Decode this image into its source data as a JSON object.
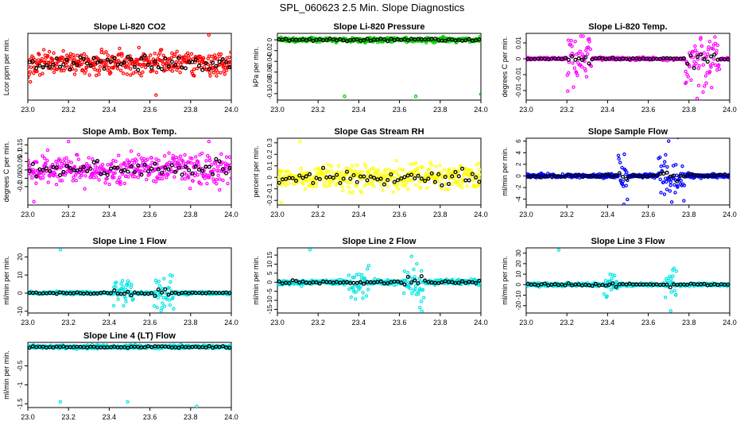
{
  "page": {
    "title": "SPL_060623  2.5 Min. Slope Diagnostics"
  },
  "colors": {
    "background": "#ffffff",
    "axis": "#000000",
    "overlay": "#000000"
  },
  "chart_data": [
    {
      "type": "scatter",
      "title": "Slope Li-820 CO2",
      "ylabel": "Lcor ppm per min.",
      "color": "#ff0000",
      "xlim": [
        23.0,
        24.0
      ],
      "ylim": [
        -1.1,
        0.9
      ],
      "xticks": [
        23.0,
        23.2,
        23.4,
        23.6,
        23.8,
        24.0
      ],
      "yticks": [],
      "grid": false,
      "points_per_series": 400,
      "overlay_points": 60,
      "spread": 0.25,
      "outliers": [
        [
          23.89,
          0.85
        ],
        [
          23.63,
          -0.95
        ]
      ]
    },
    {
      "type": "scatter",
      "title": "Slope Li-820 Pressure",
      "ylabel": "kPa per min.",
      "color": "#00cc00",
      "xlim": [
        23.0,
        24.0
      ],
      "ylim": [
        -0.112,
        0.012
      ],
      "xticks": [
        23.0,
        23.2,
        23.4,
        23.6,
        23.8,
        24.0
      ],
      "yticks": [
        -0.1,
        -0.08,
        -0.06,
        -0.04,
        -0.02,
        0.0
      ],
      "grid": false,
      "points_per_series": 400,
      "overlay_points": 60,
      "spread": 0.003,
      "outliers": [
        [
          23.33,
          -0.105
        ],
        [
          23.68,
          -0.105
        ],
        [
          24.0,
          -0.101
        ]
      ]
    },
    {
      "type": "scatter",
      "title": "Slope Li-820 Temp.",
      "ylabel": "degrees C per min.",
      "color": "#ff00ff",
      "xlim": [
        23.0,
        24.0
      ],
      "ylim": [
        -0.013,
        0.008
      ],
      "xticks": [
        23.0,
        23.2,
        23.4,
        23.6,
        23.8,
        24.0
      ],
      "yticks": [
        -0.01,
        -0.005,
        0.0,
        0.005
      ],
      "grid": false,
      "points_per_series": 400,
      "overlay_points": 60,
      "spread": 0.0003,
      "bursts": [
        [
          23.2,
          23.32,
          0.006
        ],
        [
          23.78,
          23.95,
          0.007
        ]
      ],
      "outliers": [
        [
          23.84,
          -0.0125
        ]
      ]
    },
    {
      "type": "scatter",
      "title": "Slope Amb. Box Temp.",
      "ylabel": "degrees C per min.",
      "color": "#ff00ff",
      "xlim": [
        23.0,
        24.0
      ],
      "ylim": [
        -0.21,
        0.19
      ],
      "xticks": [
        23.0,
        23.2,
        23.4,
        23.6,
        23.8,
        24.0
      ],
      "yticks": [
        -0.1,
        -0.05,
        0.0,
        0.05,
        0.1,
        0.15
      ],
      "grid": false,
      "points_per_series": 400,
      "overlay_points": 60,
      "spread": 0.06,
      "outliers": [
        [
          23.2,
          0.17
        ],
        [
          23.89,
          0.17
        ],
        [
          23.03,
          -0.19
        ]
      ]
    },
    {
      "type": "scatter",
      "title": "Slope Gas Stream RH",
      "ylabel": "percent per min.",
      "color": "#ffff00",
      "xlim": [
        23.0,
        24.0
      ],
      "ylim": [
        -0.24,
        0.34
      ],
      "xticks": [
        23.0,
        23.2,
        23.4,
        23.6,
        23.8,
        24.0
      ],
      "yticks": [
        -0.2,
        -0.1,
        0.0,
        0.1,
        0.2,
        0.3
      ],
      "grid": false,
      "points_per_series": 400,
      "overlay_points": 60,
      "spread": 0.07,
      "outliers": [
        [
          23.11,
          0.31
        ],
        [
          23.02,
          -0.22
        ],
        [
          23.99,
          0.12
        ]
      ]
    },
    {
      "type": "scatter",
      "title": "Slope Sample Flow",
      "ylabel": "ml/min per min.",
      "color": "#0000ff",
      "xlim": [
        23.0,
        24.0
      ],
      "ylim": [
        -5.0,
        6.5
      ],
      "xticks": [
        23.0,
        23.2,
        23.4,
        23.6,
        23.8,
        24.0
      ],
      "yticks": [
        -4,
        -2,
        0,
        2,
        4,
        6
      ],
      "grid": false,
      "points_per_series": 400,
      "overlay_points": 60,
      "spread": 0.25,
      "bursts": [
        [
          23.45,
          23.5,
          3.0
        ],
        [
          23.65,
          23.78,
          3.5
        ]
      ],
      "outliers": [
        [
          23.7,
          6.0
        ],
        [
          23.48,
          -4.9
        ]
      ]
    },
    {
      "type": "scatter",
      "title": "Slope Line 1 Flow",
      "ylabel": "ml/min per min.",
      "color": "#00e5e5",
      "xlim": [
        23.0,
        24.0
      ],
      "ylim": [
        -11.0,
        25.0
      ],
      "xticks": [
        23.0,
        23.2,
        23.4,
        23.6,
        23.8,
        24.0
      ],
      "yticks": [
        -10,
        0,
        10,
        20
      ],
      "grid": false,
      "points_per_series": 400,
      "overlay_points": 60,
      "spread": 0.5,
      "bursts": [
        [
          23.42,
          23.52,
          5.0
        ],
        [
          23.62,
          23.72,
          7.0
        ]
      ],
      "outliers": [
        [
          23.16,
          24.0
        ],
        [
          23.7,
          10.0
        ],
        [
          23.66,
          -8.0
        ]
      ]
    },
    {
      "type": "scatter",
      "title": "Slope Line 2 Flow",
      "ylabel": "ml/min per min.",
      "color": "#00e5e5",
      "xlim": [
        23.0,
        24.0
      ],
      "ylim": [
        -17.0,
        19.0
      ],
      "xticks": [
        23.0,
        23.2,
        23.4,
        23.6,
        23.8,
        24.0
      ],
      "yticks": [
        -15,
        -10,
        -5,
        0,
        5,
        10,
        15
      ],
      "grid": false,
      "points_per_series": 400,
      "overlay_points": 60,
      "spread": 1.0,
      "bursts": [
        [
          23.35,
          23.45,
          6.0
        ],
        [
          23.62,
          23.72,
          8.0
        ]
      ],
      "outliers": [
        [
          23.16,
          18.0
        ],
        [
          23.71,
          -16.0
        ],
        [
          23.7,
          -14.0
        ]
      ]
    },
    {
      "type": "scatter",
      "title": "Slope Line 3 Flow",
      "ylabel": "ml/min per min.",
      "color": "#00e5e5",
      "xlim": [
        23.0,
        24.0
      ],
      "ylim": [
        -27.0,
        35.0
      ],
      "xticks": [
        23.0,
        23.2,
        23.4,
        23.6,
        23.8,
        24.0
      ],
      "yticks": [
        -20,
        -10,
        0,
        10,
        20,
        30
      ],
      "grid": false,
      "points_per_series": 400,
      "overlay_points": 60,
      "spread": 1.2,
      "bursts": [
        [
          23.38,
          23.45,
          8.0
        ],
        [
          23.68,
          23.74,
          10.0
        ]
      ],
      "outliers": [
        [
          23.16,
          33.0
        ],
        [
          23.71,
          -25.0
        ],
        [
          23.72,
          14.0
        ]
      ]
    },
    {
      "type": "scatter",
      "title": "Slope Line 4 (LT) Flow",
      "ylabel": "ml/min per min.",
      "color": "#00e5e5",
      "xlim": [
        23.0,
        24.0
      ],
      "ylim": [
        -1.6,
        0.12
      ],
      "xticks": [
        23.0,
        23.2,
        23.4,
        23.6,
        23.8,
        24.0
      ],
      "yticks": [
        -1.5,
        -1.0,
        -0.5
      ],
      "grid": false,
      "points_per_series": 400,
      "overlay_points": 60,
      "spread": 0.03,
      "outliers": [
        [
          23.16,
          -1.45
        ],
        [
          23.49,
          -1.45
        ],
        [
          23.83,
          -1.57
        ]
      ]
    }
  ]
}
